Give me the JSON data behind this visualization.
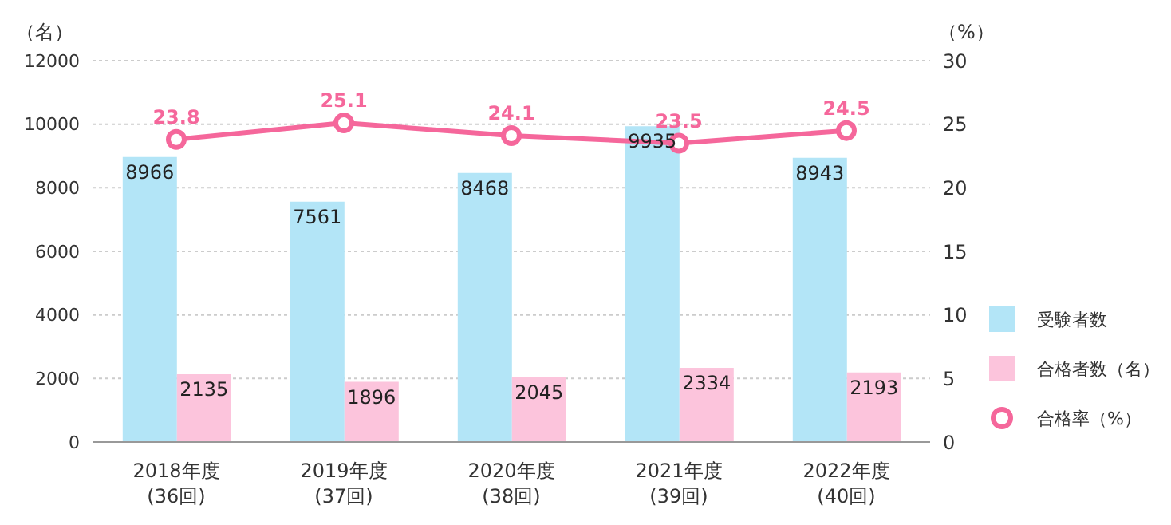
{
  "chart_data": {
    "type": "bar",
    "categories": [
      "2018年度\n(36回)",
      "2019年度\n(37回)",
      "2020年度\n(38回)",
      "2021年度\n(39回)",
      "2022年度\n(40回)"
    ],
    "series": [
      {
        "name": "受験者数",
        "color": "#b3e5f7",
        "values": [
          8966,
          7561,
          8468,
          9935,
          8943
        ]
      },
      {
        "name": "合格者数（名）",
        "color": "#fcc4dc",
        "values": [
          2135,
          1896,
          2045,
          2334,
          2193
        ]
      },
      {
        "name": "合格率（%）",
        "type": "line",
        "axis": "y2",
        "color": "#f5679b",
        "values": [
          23.8,
          25.1,
          24.1,
          23.5,
          24.5
        ]
      }
    ],
    "ylabel": "（名）",
    "y2label": "（%）",
    "ylim": [
      0,
      12000
    ],
    "yticks": [
      0,
      2000,
      4000,
      6000,
      8000,
      10000,
      12000
    ],
    "y2lim": [
      0,
      30
    ],
    "y2ticks": [
      0,
      5,
      10,
      15,
      20,
      25,
      30
    ],
    "grid": "y",
    "legend": "right",
    "marker": "circle",
    "data_labels": true
  }
}
